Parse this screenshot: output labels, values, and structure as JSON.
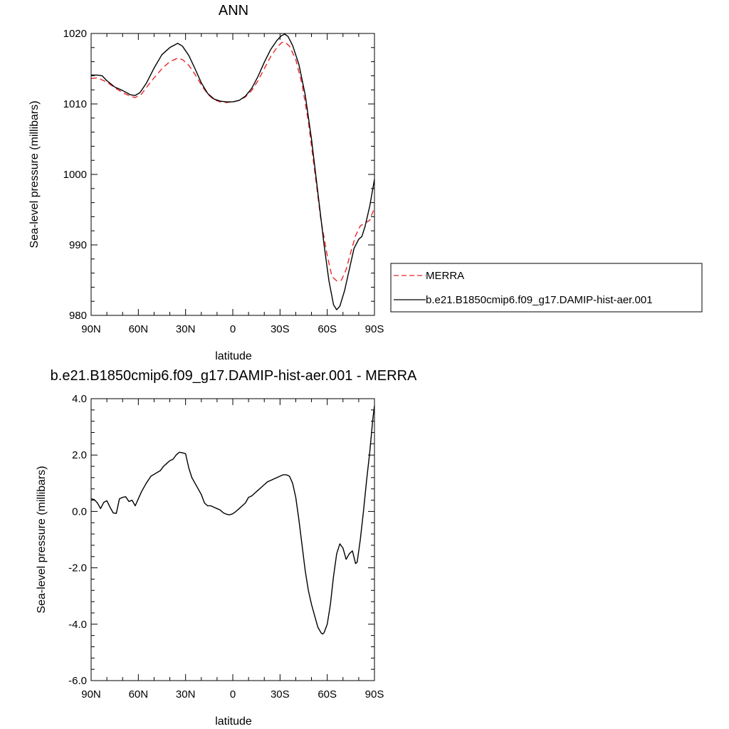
{
  "chart_data": [
    {
      "type": "line",
      "title": "ANN",
      "xlabel": "latitude",
      "ylabel": "Sea-level pressure (millibars)",
      "xticks": [
        {
          "value": 90,
          "label": "90N"
        },
        {
          "value": 60,
          "label": "60N"
        },
        {
          "value": 30,
          "label": "30N"
        },
        {
          "value": 0,
          "label": "0"
        },
        {
          "value": -30,
          "label": "30S"
        },
        {
          "value": -60,
          "label": "60S"
        },
        {
          "value": -90,
          "label": "90S"
        }
      ],
      "yticks": [
        {
          "value": 980,
          "label": "980"
        },
        {
          "value": 990,
          "label": "990"
        },
        {
          "value": 1000,
          "label": "1000"
        },
        {
          "value": 1010,
          "label": "1010"
        },
        {
          "value": 1020,
          "label": "1020"
        }
      ],
      "xlim": [
        90,
        -90
      ],
      "ylim": [
        980,
        1020
      ],
      "grid": false,
      "legend_position": "right",
      "series": [
        {
          "name": "MERRA",
          "color": "#e8262b",
          "dash": "dashed",
          "points": [
            [
              90,
              1013.6
            ],
            [
              86,
              1013.7
            ],
            [
              80,
              1013.1
            ],
            [
              75,
              1012.3
            ],
            [
              70,
              1011.6
            ],
            [
              65,
              1011.1
            ],
            [
              62,
              1010.9
            ],
            [
              58,
              1011.4
            ],
            [
              55,
              1012.3
            ],
            [
              50,
              1013.7
            ],
            [
              45,
              1015.0
            ],
            [
              40,
              1016.0
            ],
            [
              35,
              1016.5
            ],
            [
              32,
              1016.3
            ],
            [
              28,
              1015.5
            ],
            [
              24,
              1014.2
            ],
            [
              20,
              1012.7
            ],
            [
              16,
              1011.4
            ],
            [
              12,
              1010.6
            ],
            [
              8,
              1010.3
            ],
            [
              4,
              1010.2
            ],
            [
              0,
              1010.3
            ],
            [
              -4,
              1010.5
            ],
            [
              -8,
              1011.0
            ],
            [
              -12,
              1011.9
            ],
            [
              -16,
              1013.3
            ],
            [
              -20,
              1015.0
            ],
            [
              -24,
              1016.7
            ],
            [
              -28,
              1018.0
            ],
            [
              -31,
              1018.7
            ],
            [
              -33,
              1018.8
            ],
            [
              -36,
              1018.2
            ],
            [
              -40,
              1016.3
            ],
            [
              -44,
              1012.8
            ],
            [
              -48,
              1007.5
            ],
            [
              -52,
              1000.5
            ],
            [
              -56,
              993.5
            ],
            [
              -60,
              988.5
            ],
            [
              -63,
              985.5
            ],
            [
              -66,
              984.9
            ],
            [
              -69,
              985.0
            ],
            [
              -72,
              986.5
            ],
            [
              -75,
              989.0
            ],
            [
              -78,
              991.3
            ],
            [
              -81,
              992.7
            ],
            [
              -84,
              993.1
            ],
            [
              -87,
              993.5
            ],
            [
              -90,
              995.3
            ]
          ]
        },
        {
          "name": "b.e21.B1850cmip6.f09_g17.DAMIP-hist-aer.001",
          "color": "#000000",
          "dash": "solid",
          "points": [
            [
              90,
              1014.1
            ],
            [
              86,
              1014.1
            ],
            [
              83,
              1014.0
            ],
            [
              80,
              1013.3
            ],
            [
              75,
              1012.4
            ],
            [
              70,
              1011.9
            ],
            [
              65,
              1011.3
            ],
            [
              62,
              1011.2
            ],
            [
              59,
              1011.6
            ],
            [
              55,
              1012.9
            ],
            [
              50,
              1015.1
            ],
            [
              45,
              1017.0
            ],
            [
              40,
              1018.0
            ],
            [
              35,
              1018.6
            ],
            [
              32,
              1018.2
            ],
            [
              28,
              1016.9
            ],
            [
              24,
              1015.0
            ],
            [
              20,
              1013.0
            ],
            [
              16,
              1011.5
            ],
            [
              12,
              1010.7
            ],
            [
              8,
              1010.4
            ],
            [
              4,
              1010.3
            ],
            [
              0,
              1010.3
            ],
            [
              -4,
              1010.5
            ],
            [
              -8,
              1011.1
            ],
            [
              -12,
              1012.2
            ],
            [
              -16,
              1013.9
            ],
            [
              -20,
              1015.9
            ],
            [
              -24,
              1017.7
            ],
            [
              -28,
              1019.0
            ],
            [
              -31,
              1019.7
            ],
            [
              -33,
              1019.9
            ],
            [
              -35,
              1019.6
            ],
            [
              -38,
              1018.3
            ],
            [
              -42,
              1015.6
            ],
            [
              -46,
              1011.3
            ],
            [
              -50,
              1005.0
            ],
            [
              -54,
              997.5
            ],
            [
              -58,
              990.0
            ],
            [
              -61,
              985.0
            ],
            [
              -64,
              981.5
            ],
            [
              -66,
              980.8
            ],
            [
              -68,
              981.3
            ],
            [
              -71,
              983.5
            ],
            [
              -74,
              986.5
            ],
            [
              -77,
              989.5
            ],
            [
              -80,
              990.8
            ],
            [
              -82,
              991.2
            ],
            [
              -84,
              992.6
            ],
            [
              -87,
              995.5
            ],
            [
              -90,
              999.3
            ]
          ]
        }
      ]
    },
    {
      "type": "line",
      "title": "b.e21.B1850cmip6.f09_g17.DAMIP-hist-aer.001 - MERRA",
      "xlabel": "latitude",
      "ylabel": "Sea-level pressure (millibars)",
      "xticks": [
        {
          "value": 90,
          "label": "90N"
        },
        {
          "value": 60,
          "label": "60N"
        },
        {
          "value": 30,
          "label": "30N"
        },
        {
          "value": 0,
          "label": "0"
        },
        {
          "value": -30,
          "label": "30S"
        },
        {
          "value": -60,
          "label": "60S"
        },
        {
          "value": -90,
          "label": "90S"
        }
      ],
      "yticks": [
        {
          "value": -6,
          "label": "-6.0"
        },
        {
          "value": -4,
          "label": "-4.0"
        },
        {
          "value": -2,
          "label": "-2.0"
        },
        {
          "value": 0,
          "label": "0.0"
        },
        {
          "value": 2,
          "label": "2.0"
        },
        {
          "value": 4,
          "label": "4.0"
        }
      ],
      "xlim": [
        90,
        -90
      ],
      "ylim": [
        -6,
        4
      ],
      "grid": false,
      "series": [
        {
          "name": "",
          "color": "#000000",
          "dash": "solid",
          "points": [
            [
              90,
              0.45
            ],
            [
              88,
              0.42
            ],
            [
              86,
              0.3
            ],
            [
              84,
              0.1
            ],
            [
              82,
              0.32
            ],
            [
              80,
              0.38
            ],
            [
              78,
              0.15
            ],
            [
              76,
              -0.05
            ],
            [
              74,
              -0.07
            ],
            [
              72,
              0.45
            ],
            [
              70,
              0.5
            ],
            [
              68,
              0.52
            ],
            [
              66,
              0.35
            ],
            [
              64,
              0.4
            ],
            [
              62,
              0.2
            ],
            [
              60,
              0.45
            ],
            [
              58,
              0.7
            ],
            [
              55,
              1.0
            ],
            [
              52,
              1.25
            ],
            [
              49,
              1.35
            ],
            [
              46,
              1.45
            ],
            [
              44,
              1.6
            ],
            [
              42,
              1.7
            ],
            [
              40,
              1.8
            ],
            [
              38,
              1.85
            ],
            [
              36,
              2.0
            ],
            [
              34,
              2.1
            ],
            [
              32,
              2.08
            ],
            [
              30,
              2.05
            ],
            [
              28,
              1.55
            ],
            [
              26,
              1.2
            ],
            [
              24,
              1.0
            ],
            [
              22,
              0.8
            ],
            [
              20,
              0.6
            ],
            [
              18,
              0.3
            ],
            [
              16,
              0.2
            ],
            [
              14,
              0.2
            ],
            [
              12,
              0.15
            ],
            [
              10,
              0.1
            ],
            [
              8,
              0.05
            ],
            [
              6,
              -0.05
            ],
            [
              4,
              -0.1
            ],
            [
              2,
              -0.12
            ],
            [
              0,
              -0.08
            ],
            [
              -2,
              0.0
            ],
            [
              -4,
              0.1
            ],
            [
              -6,
              0.2
            ],
            [
              -8,
              0.3
            ],
            [
              -10,
              0.5
            ],
            [
              -12,
              0.55
            ],
            [
              -14,
              0.65
            ],
            [
              -16,
              0.75
            ],
            [
              -18,
              0.85
            ],
            [
              -20,
              0.95
            ],
            [
              -22,
              1.05
            ],
            [
              -24,
              1.1
            ],
            [
              -26,
              1.15
            ],
            [
              -28,
              1.2
            ],
            [
              -30,
              1.25
            ],
            [
              -32,
              1.3
            ],
            [
              -34,
              1.3
            ],
            [
              -36,
              1.25
            ],
            [
              -38,
              1.0
            ],
            [
              -40,
              0.5
            ],
            [
              -42,
              -0.3
            ],
            [
              -44,
              -1.2
            ],
            [
              -46,
              -2.1
            ],
            [
              -48,
              -2.8
            ],
            [
              -50,
              -3.3
            ],
            [
              -52,
              -3.7
            ],
            [
              -54,
              -4.1
            ],
            [
              -56,
              -4.3
            ],
            [
              -57,
              -4.35
            ],
            [
              -58,
              -4.3
            ],
            [
              -60,
              -4.0
            ],
            [
              -62,
              -3.3
            ],
            [
              -64,
              -2.3
            ],
            [
              -66,
              -1.5
            ],
            [
              -68,
              -1.15
            ],
            [
              -70,
              -1.3
            ],
            [
              -72,
              -1.7
            ],
            [
              -74,
              -1.5
            ],
            [
              -76,
              -1.4
            ],
            [
              -78,
              -1.85
            ],
            [
              -79,
              -1.8
            ],
            [
              -81,
              -1.0
            ],
            [
              -83,
              0.0
            ],
            [
              -85,
              1.1
            ],
            [
              -87,
              2.1
            ],
            [
              -89,
              3.3
            ],
            [
              -90,
              3.75
            ]
          ]
        }
      ]
    }
  ]
}
